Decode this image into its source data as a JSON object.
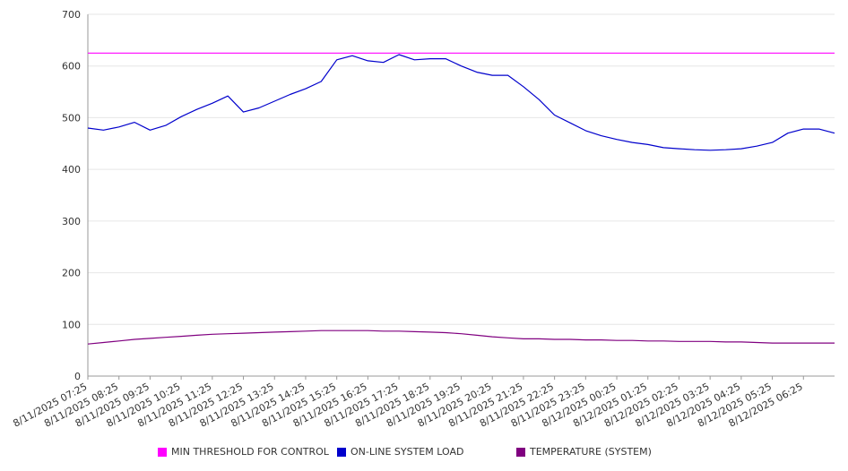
{
  "chart_data": {
    "type": "line",
    "title": "",
    "xlabel": "",
    "ylabel": "",
    "ylim": [
      0,
      700
    ],
    "yticks": [
      0,
      100,
      200,
      300,
      400,
      500,
      600,
      700
    ],
    "grid": true,
    "legend_position": "bottom",
    "xtick_labels": [
      "8/11/2025 07:25",
      "8/11/2025 08:25",
      "8/11/2025 09:25",
      "8/11/2025 10:25",
      "8/11/2025 11:25",
      "8/11/2025 12:25",
      "8/11/2025 13:25",
      "8/11/2025 14:25",
      "8/11/2025 15:25",
      "8/11/2025 16:25",
      "8/11/2025 17:25",
      "8/11/2025 18:25",
      "8/11/2025 19:25",
      "8/11/2025 20:25",
      "8/11/2025 21:25",
      "8/11/2025 22:25",
      "8/11/2025 23:25",
      "8/12/2025 00:25",
      "8/12/2025 01:25",
      "8/12/2025 02:25",
      "8/12/2025 03:25",
      "8/12/2025 04:25",
      "8/12/2025 05:25",
      "8/12/2025 06:25"
    ],
    "x": [
      "8/11/2025 07:25",
      "8/11/2025 07:55",
      "8/11/2025 08:25",
      "8/11/2025 08:55",
      "8/11/2025 09:25",
      "8/11/2025 09:55",
      "8/11/2025 10:25",
      "8/11/2025 10:55",
      "8/11/2025 11:25",
      "8/11/2025 11:55",
      "8/11/2025 12:25",
      "8/11/2025 12:55",
      "8/11/2025 13:25",
      "8/11/2025 13:55",
      "8/11/2025 14:25",
      "8/11/2025 14:55",
      "8/11/2025 15:25",
      "8/11/2025 15:55",
      "8/11/2025 16:25",
      "8/11/2025 16:55",
      "8/11/2025 17:25",
      "8/11/2025 17:55",
      "8/11/2025 18:25",
      "8/11/2025 18:55",
      "8/11/2025 19:25",
      "8/11/2025 19:55",
      "8/11/2025 20:25",
      "8/11/2025 20:55",
      "8/11/2025 21:25",
      "8/11/2025 21:55",
      "8/11/2025 22:25",
      "8/11/2025 22:55",
      "8/11/2025 23:25",
      "8/11/2025 23:55",
      "8/12/2025 00:25",
      "8/12/2025 00:55",
      "8/12/2025 01:25",
      "8/12/2025 01:55",
      "8/12/2025 02:25",
      "8/12/2025 02:55",
      "8/12/2025 03:25",
      "8/12/2025 03:55",
      "8/12/2025 04:25",
      "8/12/2025 04:55",
      "8/12/2025 05:25",
      "8/12/2025 05:55",
      "8/12/2025 06:25",
      "8/12/2025 06:55",
      "8/12/2025 07:25"
    ],
    "series": [
      {
        "name": "MIN THRESHOLD FOR CONTROL",
        "color": "#ff00ff",
        "values": [
          625,
          625,
          625,
          625,
          625,
          625,
          625,
          625,
          625,
          625,
          625,
          625,
          625,
          625,
          625,
          625,
          625,
          625,
          625,
          625,
          625,
          625,
          625,
          625,
          625,
          625,
          625,
          625,
          625,
          625,
          625,
          625,
          625,
          625,
          625,
          625,
          625,
          625,
          625,
          625,
          625,
          625,
          625,
          625,
          625,
          625,
          625,
          625,
          625
        ]
      },
      {
        "name": "ON-LINE SYSTEM LOAD",
        "color": "#0000cc",
        "values": [
          480,
          476,
          482,
          491,
          476,
          485,
          502,
          516,
          528,
          542,
          511,
          519,
          532,
          545,
          556,
          570,
          612,
          620,
          610,
          607,
          622,
          612,
          614,
          614,
          600,
          588,
          582,
          582,
          560,
          535,
          505,
          490,
          475,
          465,
          458,
          452,
          448,
          442,
          440,
          438,
          437,
          438,
          440,
          445,
          452,
          470,
          478,
          478,
          470
        ]
      },
      {
        "name": "TEMPERATURE (SYSTEM)",
        "color": "#800080",
        "values": [
          62,
          65,
          68,
          71,
          73,
          75,
          77,
          79,
          81,
          82,
          83,
          84,
          85,
          86,
          87,
          88,
          88,
          88,
          88,
          87,
          87,
          86,
          85,
          84,
          82,
          79,
          76,
          74,
          72,
          72,
          71,
          71,
          70,
          70,
          69,
          69,
          68,
          68,
          67,
          67,
          67,
          66,
          66,
          65,
          64,
          64,
          64,
          64,
          64
        ]
      }
    ]
  }
}
